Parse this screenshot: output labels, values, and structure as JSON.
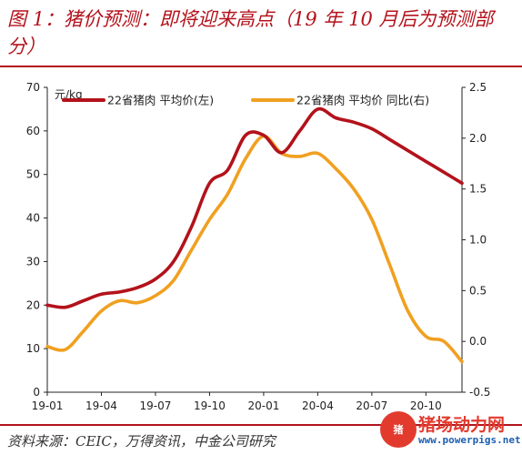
{
  "header": {
    "title": "图 1：猪价预测：即将迎来高点（19 年 10 月后为预测部分）"
  },
  "footer": {
    "source": "资料来源：CEIC，万得资讯，中金公司研究"
  },
  "watermark": {
    "name": "猪场动力网",
    "url": "www.powerpigs.net",
    "logo": "猪"
  },
  "colors": {
    "title": "#b3121b",
    "series_price": "#b3121b",
    "series_yoy": "#f0a020"
  },
  "chart_data": {
    "type": "line",
    "unit_label": "元/kg",
    "x_tick_labels": [
      "19-01",
      "19-04",
      "19-07",
      "19-10",
      "20-01",
      "20-04",
      "20-07",
      "20-10"
    ],
    "y_left": {
      "min": 0,
      "max": 70,
      "ticks": [
        0,
        10,
        20,
        30,
        40,
        50,
        60,
        70
      ]
    },
    "y_right": {
      "min": -0.5,
      "max": 2.5,
      "ticks": [
        "-0.5",
        "0.0",
        "0.5",
        "1.0",
        "1.5",
        "2.0",
        "2.5"
      ]
    },
    "legend_position": "top",
    "grid": false,
    "series": [
      {
        "name": "22省猪肉 平均价(左)",
        "axis": "left",
        "points": [
          [
            "2019-01",
            20
          ],
          [
            "2019-02",
            19.5
          ],
          [
            "2019-03",
            21
          ],
          [
            "2019-04",
            22.5
          ],
          [
            "2019-05",
            23
          ],
          [
            "2019-06",
            24
          ],
          [
            "2019-07",
            26
          ],
          [
            "2019-08",
            30
          ],
          [
            "2019-09",
            38
          ],
          [
            "2019-10",
            48
          ],
          [
            "2019-11",
            51
          ],
          [
            "2019-12",
            59
          ],
          [
            "2020-01",
            59
          ],
          [
            "2020-02",
            55
          ],
          [
            "2020-03",
            60
          ],
          [
            "2020-04",
            65
          ],
          [
            "2020-05",
            63
          ],
          [
            "2020-06",
            62
          ],
          [
            "2020-07",
            60.5
          ],
          [
            "2020-08",
            58
          ],
          [
            "2020-09",
            55.5
          ],
          [
            "2020-10",
            53
          ],
          [
            "2020-11",
            50.5
          ],
          [
            "2020-12",
            48
          ]
        ]
      },
      {
        "name": "22省猪肉 平均价 同比(右)",
        "axis": "right",
        "points": [
          [
            "2019-01",
            -0.05
          ],
          [
            "2019-02",
            -0.08
          ],
          [
            "2019-03",
            0.1
          ],
          [
            "2019-04",
            0.3
          ],
          [
            "2019-05",
            0.4
          ],
          [
            "2019-06",
            0.38
          ],
          [
            "2019-07",
            0.45
          ],
          [
            "2019-08",
            0.6
          ],
          [
            "2019-09",
            0.9
          ],
          [
            "2019-10",
            1.2
          ],
          [
            "2019-11",
            1.45
          ],
          [
            "2019-12",
            1.8
          ],
          [
            "2020-01",
            2.02
          ],
          [
            "2020-02",
            1.85
          ],
          [
            "2020-03",
            1.82
          ],
          [
            "2020-04",
            1.85
          ],
          [
            "2020-05",
            1.7
          ],
          [
            "2020-06",
            1.5
          ],
          [
            "2020-07",
            1.2
          ],
          [
            "2020-08",
            0.75
          ],
          [
            "2020-09",
            0.3
          ],
          [
            "2020-10",
            0.05
          ],
          [
            "2020-11",
            0.0
          ],
          [
            "2020-12",
            -0.2
          ]
        ]
      }
    ]
  }
}
